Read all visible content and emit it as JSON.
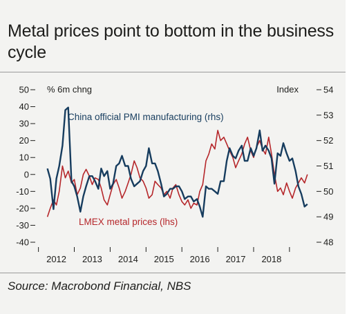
{
  "title": "Metal prices point to bottom in the business cycle",
  "source": "Source: Macrobond Financial, NBS",
  "colors": {
    "pmi": "#163c5e",
    "lmex": "#b5262a",
    "text": "#1d1d1b",
    "panel": "#f3f3f1"
  },
  "chart_data": {
    "type": "line",
    "grid": false,
    "left_axis": {
      "title": "% 6m chng",
      "range": [
        -40,
        50
      ],
      "ticks": [
        "50",
        "40",
        "30",
        "20",
        "10",
        "0",
        "-10",
        "-20",
        "-30",
        "-40"
      ]
    },
    "right_axis": {
      "title": "Index",
      "range": [
        48,
        54
      ],
      "ticks": [
        "54",
        "53",
        "52",
        "51",
        "50",
        "49",
        "48"
      ]
    },
    "x_axis": {
      "range": [
        2011.7,
        2019.1
      ],
      "tick_labels": [
        "2012",
        "2013",
        "2014",
        "2015",
        "2016",
        "2017",
        "2018"
      ],
      "tick_positions": [
        2012,
        2013,
        2014,
        2015,
        2016,
        2017,
        2018,
        2019
      ]
    },
    "series": [
      {
        "name": "China official PMI manufacturing (rhs)",
        "axis": "right",
        "x": [
          2011.75,
          2011.83,
          2011.92,
          2012.0,
          2012.08,
          2012.17,
          2012.25,
          2012.33,
          2012.42,
          2012.5,
          2012.58,
          2012.67,
          2012.75,
          2012.83,
          2012.92,
          2013.0,
          2013.08,
          2013.17,
          2013.25,
          2013.33,
          2013.42,
          2013.5,
          2013.58,
          2013.67,
          2013.75,
          2013.83,
          2013.92,
          2014.0,
          2014.08,
          2014.17,
          2014.25,
          2014.33,
          2014.42,
          2014.5,
          2014.58,
          2014.67,
          2014.75,
          2014.83,
          2014.92,
          2015.0,
          2015.08,
          2015.17,
          2015.25,
          2015.33,
          2015.42,
          2015.5,
          2015.58,
          2015.67,
          2015.75,
          2015.83,
          2015.92,
          2016.0,
          2016.08,
          2016.17,
          2016.25,
          2016.33,
          2016.42,
          2016.5,
          2016.58,
          2016.67,
          2016.75,
          2016.83,
          2016.92,
          2017.0,
          2017.08,
          2017.17,
          2017.25,
          2017.33,
          2017.42,
          2017.5,
          2017.58,
          2017.67,
          2017.75,
          2017.83,
          2017.92,
          2018.0,
          2018.08,
          2018.17,
          2018.25,
          2018.33,
          2018.42,
          2018.5,
          2018.58,
          2018.67,
          2018.75,
          2018.83,
          2018.92,
          2019.0
        ],
        "values": [
          50.9,
          50.5,
          49.3,
          50.5,
          51.0,
          51.8,
          53.2,
          53.3,
          50.4,
          50.2,
          49.8,
          49.2,
          49.8,
          50.2,
          50.6,
          50.6,
          50.4,
          50.1,
          50.9,
          50.6,
          50.8,
          50.1,
          50.3,
          51.0,
          51.1,
          51.4,
          51.0,
          51.0,
          50.5,
          50.2,
          50.3,
          50.4,
          50.8,
          51.0,
          51.7,
          51.1,
          51.1,
          50.8,
          50.3,
          49.8,
          49.9,
          50.1,
          50.1,
          50.2,
          50.2,
          50.0,
          49.7,
          49.8,
          49.8,
          49.6,
          49.7,
          49.4,
          49.0,
          50.2,
          50.1,
          50.1,
          50.0,
          49.9,
          50.4,
          50.4,
          51.2,
          51.7,
          51.4,
          51.3,
          51.6,
          51.8,
          51.2,
          51.2,
          51.7,
          51.4,
          51.7,
          52.4,
          51.6,
          51.8,
          51.6,
          51.3,
          50.3,
          51.5,
          51.4,
          51.9,
          51.5,
          51.2,
          51.3,
          50.8,
          50.2,
          49.9,
          49.4,
          49.5
        ]
      },
      {
        "name": "LMEX metal prices (lhs)",
        "axis": "left",
        "x": [
          2011.75,
          2011.83,
          2011.92,
          2012.0,
          2012.08,
          2012.17,
          2012.25,
          2012.33,
          2012.42,
          2012.5,
          2012.58,
          2012.67,
          2012.75,
          2012.83,
          2012.92,
          2013.0,
          2013.08,
          2013.17,
          2013.25,
          2013.33,
          2013.42,
          2013.5,
          2013.58,
          2013.67,
          2013.75,
          2013.83,
          2013.92,
          2014.0,
          2014.08,
          2014.17,
          2014.25,
          2014.33,
          2014.42,
          2014.5,
          2014.58,
          2014.67,
          2014.75,
          2014.83,
          2014.92,
          2015.0,
          2015.08,
          2015.17,
          2015.25,
          2015.33,
          2015.42,
          2015.5,
          2015.58,
          2015.67,
          2015.75,
          2015.83,
          2015.92,
          2016.0,
          2016.08,
          2016.17,
          2016.25,
          2016.33,
          2016.42,
          2016.5,
          2016.58,
          2016.67,
          2016.75,
          2016.83,
          2016.92,
          2017.0,
          2017.08,
          2017.17,
          2017.25,
          2017.33,
          2017.42,
          2017.5,
          2017.58,
          2017.67,
          2017.75,
          2017.83,
          2017.92,
          2018.0,
          2018.08,
          2018.17,
          2018.25,
          2018.33,
          2018.42,
          2018.5,
          2018.58,
          2018.67,
          2018.75,
          2018.83,
          2018.92,
          2019.0
        ],
        "values": [
          -25,
          -20,
          -15,
          -18,
          -10,
          5,
          -2,
          2,
          -5,
          -3,
          -12,
          -8,
          0,
          3,
          -1,
          -6,
          -2,
          -3,
          -8,
          -15,
          -18,
          -12,
          -6,
          -3,
          -8,
          -14,
          -10,
          -5,
          0,
          8,
          4,
          -2,
          -4,
          -8,
          -14,
          -12,
          -4,
          -6,
          -8,
          -12,
          -10,
          -14,
          -8,
          -6,
          -12,
          -16,
          -18,
          -15,
          -20,
          -17,
          -18,
          -10,
          -6,
          8,
          12,
          18,
          15,
          26,
          20,
          22,
          18,
          14,
          10,
          4,
          8,
          12,
          18,
          22,
          14,
          10,
          16,
          20,
          15,
          12,
          22,
          12,
          0,
          -10,
          -8,
          -12,
          -5,
          -10,
          -14,
          -8,
          -5,
          -2,
          -5,
          0
        ]
      }
    ]
  }
}
